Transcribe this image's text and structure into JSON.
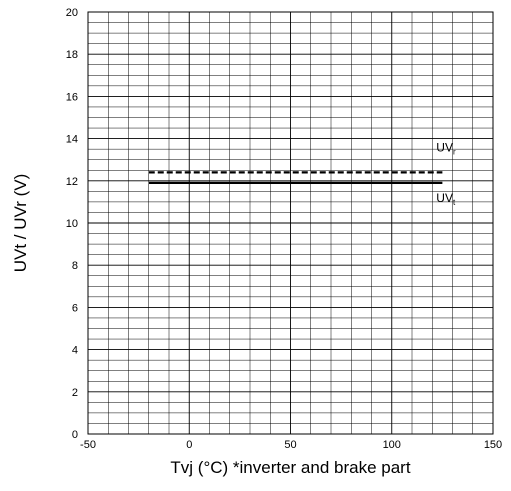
{
  "chart_data": {
    "type": "line",
    "title": "",
    "xlabel": "Tvj (°C) *inverter and brake part",
    "ylabel": "UVt / UVr (V)",
    "xlim": [
      -50,
      150
    ],
    "ylim": [
      0,
      20
    ],
    "x_major_ticks": [
      -50,
      0,
      50,
      100,
      150
    ],
    "y_major_ticks": [
      0,
      2,
      4,
      6,
      8,
      10,
      12,
      14,
      16,
      18,
      20
    ],
    "x_minor_step": 10,
    "y_minor_step": 0.5,
    "grid": true,
    "series": [
      {
        "name": "UVr",
        "label_main": "UV",
        "label_sub": "r",
        "style": "dashed",
        "x": [
          -20,
          125
        ],
        "y": [
          12.4,
          12.4
        ]
      },
      {
        "name": "UVt",
        "label_main": "UV",
        "label_sub": "t",
        "style": "solid",
        "x": [
          -20,
          125
        ],
        "y": [
          11.9,
          11.9
        ]
      }
    ],
    "colors": {
      "grid": "#000000",
      "series": "#000000",
      "background": "#ffffff"
    }
  }
}
